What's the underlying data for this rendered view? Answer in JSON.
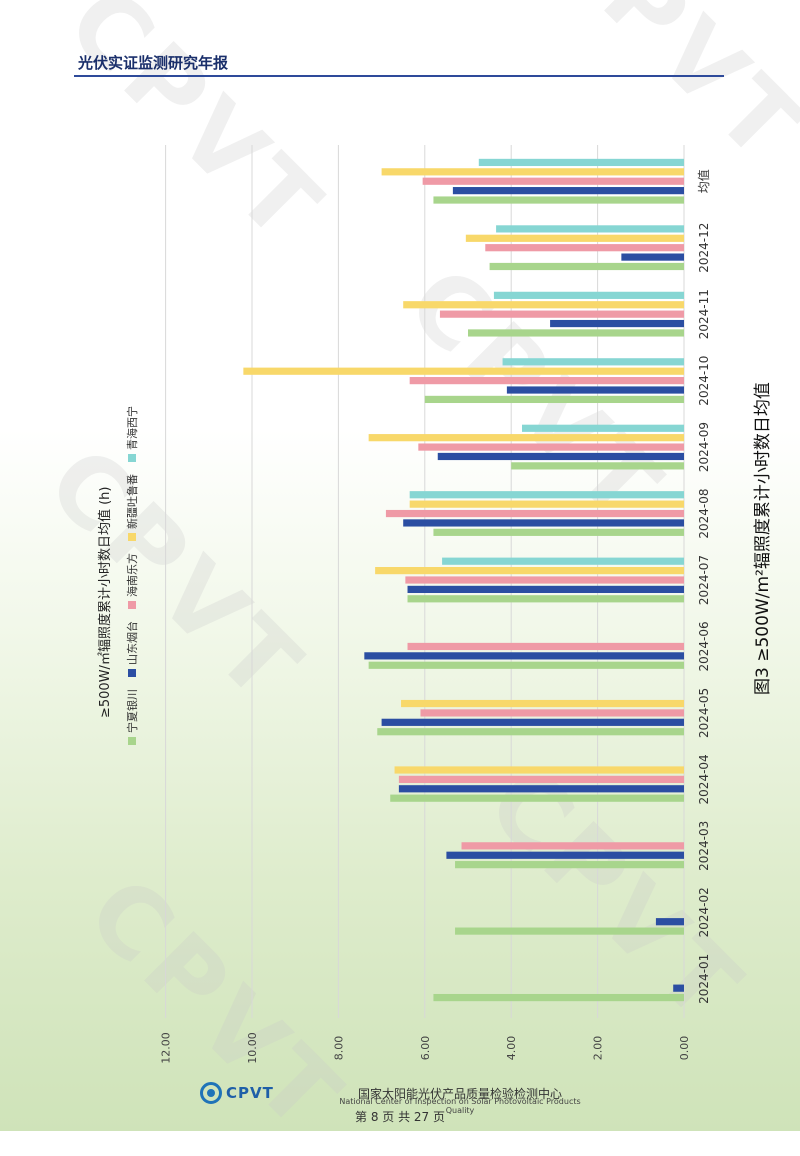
{
  "header": {
    "title": "光伏实证监测研究年报"
  },
  "watermark": "CPVT",
  "chart_data": {
    "type": "bar",
    "orientation": "rotated-page",
    "title": "图3  ≥500W/m²辐照度累计小时数日均值",
    "subtitle": "≥500W/㎡辐照度累计小时数日均值 (h)",
    "categories": [
      "2024-01",
      "2024-02",
      "2024-03",
      "2024-04",
      "2024-05",
      "2024-06",
      "2024-07",
      "2024-08",
      "2024-09",
      "2024-10",
      "2024-11",
      "2024-12",
      "均值"
    ],
    "ylim": [
      0,
      12
    ],
    "ticks": [
      "0.00",
      "2.00",
      "4.00",
      "6.00",
      "8.00",
      "10.00",
      "12.00"
    ],
    "grid": true,
    "legend_position": "top-left",
    "series": [
      {
        "name": "宁夏银川",
        "color": "#a8d58c",
        "values": [
          5.8,
          5.3,
          5.3,
          6.8,
          7.1,
          7.3,
          6.4,
          5.8,
          4.0,
          6.0,
          5.0,
          4.5,
          5.8
        ]
      },
      {
        "name": "山东烟台",
        "color": "#2b4ea2",
        "values": [
          0.25,
          0.65,
          5.5,
          6.6,
          7.0,
          7.4,
          6.4,
          6.5,
          5.7,
          4.1,
          3.1,
          1.45,
          5.35
        ]
      },
      {
        "name": "海南乐方",
        "color": "#ef9aa6",
        "values": [
          0,
          0,
          5.15,
          6.6,
          6.1,
          6.4,
          6.45,
          6.9,
          6.15,
          6.35,
          5.65,
          4.6,
          6.05
        ]
      },
      {
        "name": "新疆吐鲁番",
        "color": "#f8d86a",
        "values": [
          0,
          0,
          0,
          6.7,
          6.55,
          0,
          7.15,
          6.35,
          7.3,
          10.2,
          6.5,
          5.05,
          7.0
        ]
      },
      {
        "name": "青海西宁",
        "color": "#86d6d3",
        "values": [
          0,
          0,
          0,
          0,
          0,
          0,
          5.6,
          6.35,
          3.75,
          4.2,
          4.4,
          4.35,
          4.75
        ]
      }
    ]
  },
  "footer": {
    "logo_text": "CPVT",
    "org_cn": "国家太阳能光伏产品质量检验检测中心",
    "org_en": "National Center of Inspection on Solar Photovoltaic Products Quality",
    "page": "第 8 页 共 27 页"
  }
}
